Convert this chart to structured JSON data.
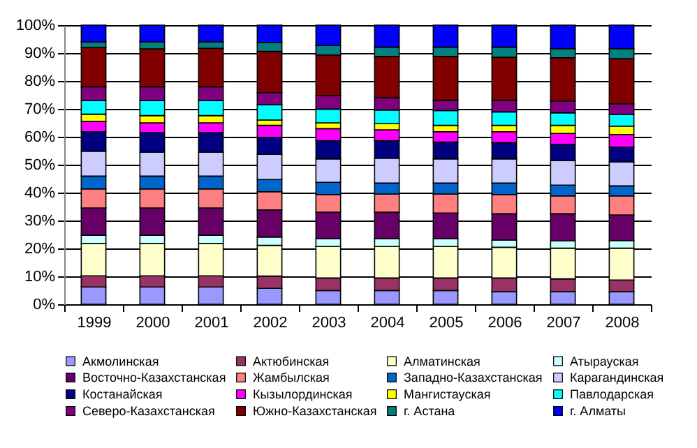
{
  "chart_data": {
    "type": "bar",
    "stacked": true,
    "categories": [
      "1999",
      "2000",
      "2001",
      "2002",
      "2003",
      "2004",
      "2005",
      "2006",
      "2007",
      "2008"
    ],
    "ylim": [
      0,
      100
    ],
    "yticks": [
      {
        "value": 0,
        "label": "0%"
      },
      {
        "value": 10,
        "label": "10%"
      },
      {
        "value": 20,
        "label": "20%"
      },
      {
        "value": 30,
        "label": "30%"
      },
      {
        "value": 40,
        "label": "40%"
      },
      {
        "value": 50,
        "label": "50%"
      },
      {
        "value": 60,
        "label": "60%"
      },
      {
        "value": 70,
        "label": "70%"
      },
      {
        "value": 80,
        "label": "80%"
      },
      {
        "value": 90,
        "label": "90%"
      },
      {
        "value": 100,
        "label": "100%"
      }
    ],
    "grid": "y",
    "legend": "bottom",
    "series": [
      {
        "name": "Акмолинская",
        "color": "#9999ff",
        "values": [
          6.2,
          6.2,
          6.2,
          5.7,
          4.9,
          4.9,
          4.9,
          4.5,
          4.5,
          4.5
        ]
      },
      {
        "name": "Актюбинская",
        "color": "#993366",
        "values": [
          4.0,
          4.0,
          4.0,
          4.4,
          4.5,
          4.5,
          4.5,
          4.9,
          4.6,
          4.2
        ]
      },
      {
        "name": "Алматинская",
        "color": "#ffffcc",
        "values": [
          11.6,
          11.6,
          11.6,
          11.0,
          11.3,
          11.3,
          11.3,
          11.0,
          11.0,
          11.4
        ]
      },
      {
        "name": "Атырауская",
        "color": "#ccffff",
        "values": [
          2.9,
          2.9,
          2.9,
          3.0,
          2.8,
          2.8,
          2.8,
          2.6,
          2.6,
          2.7
        ]
      },
      {
        "name": "Восточно-Казахстанская",
        "color": "#660066",
        "values": [
          9.8,
          9.8,
          9.8,
          9.7,
          9.5,
          9.5,
          9.2,
          9.4,
          9.7,
          9.2
        ]
      },
      {
        "name": "Жамбылская",
        "color": "#ff8080",
        "values": [
          6.8,
          6.8,
          6.8,
          6.5,
          6.3,
          6.5,
          6.8,
          6.9,
          6.4,
          6.8
        ]
      },
      {
        "name": "Западно-Казахстанская",
        "color": "#0066cc",
        "values": [
          4.6,
          4.6,
          4.6,
          4.4,
          4.4,
          3.9,
          3.9,
          4.1,
          3.9,
          3.6
        ]
      },
      {
        "name": "Карагандинская",
        "color": "#ccccff",
        "values": [
          8.9,
          8.6,
          8.6,
          9.0,
          8.4,
          8.9,
          8.7,
          8.7,
          8.8,
          8.6
        ]
      },
      {
        "name": "Костанайская",
        "color": "#000080",
        "values": [
          7.0,
          7.0,
          7.0,
          6.1,
          6.5,
          6.3,
          6.0,
          5.8,
          5.8,
          5.3
        ]
      },
      {
        "name": "Кызылординская",
        "color": "#ff00ff",
        "values": [
          3.7,
          3.5,
          3.5,
          4.3,
          4.3,
          3.9,
          3.7,
          3.9,
          3.9,
          4.5
        ]
      },
      {
        "name": "Мангистауская",
        "color": "#ffff00",
        "values": [
          2.6,
          2.6,
          2.6,
          1.9,
          2.1,
          2.2,
          2.3,
          2.3,
          2.9,
          3.0
        ]
      },
      {
        "name": "Павлодарская",
        "color": "#00ffff",
        "values": [
          4.9,
          5.4,
          5.4,
          5.5,
          4.9,
          4.9,
          5.3,
          4.8,
          4.5,
          4.2
        ]
      },
      {
        "name": "Северо-Казахстанская",
        "color": "#800080",
        "values": [
          4.9,
          4.9,
          4.9,
          4.3,
          4.9,
          4.4,
          3.7,
          4.2,
          4.2,
          3.8
        ]
      },
      {
        "name": "Южно-Казахстанская",
        "color": "#800000",
        "values": [
          14.1,
          13.6,
          13.8,
          14.8,
          14.5,
          14.8,
          15.7,
          15.4,
          15.5,
          16.2
        ]
      },
      {
        "name": "г. Астана",
        "color": "#008080",
        "values": [
          2.0,
          2.5,
          2.3,
          3.2,
          3.4,
          3.3,
          3.3,
          3.6,
          3.3,
          3.6
        ]
      },
      {
        "name": "г. Алматы",
        "color": "#0000ff",
        "values": [
          6.0,
          6.0,
          6.0,
          6.2,
          7.3,
          7.9,
          7.9,
          7.9,
          8.4,
          8.4
        ]
      }
    ]
  }
}
